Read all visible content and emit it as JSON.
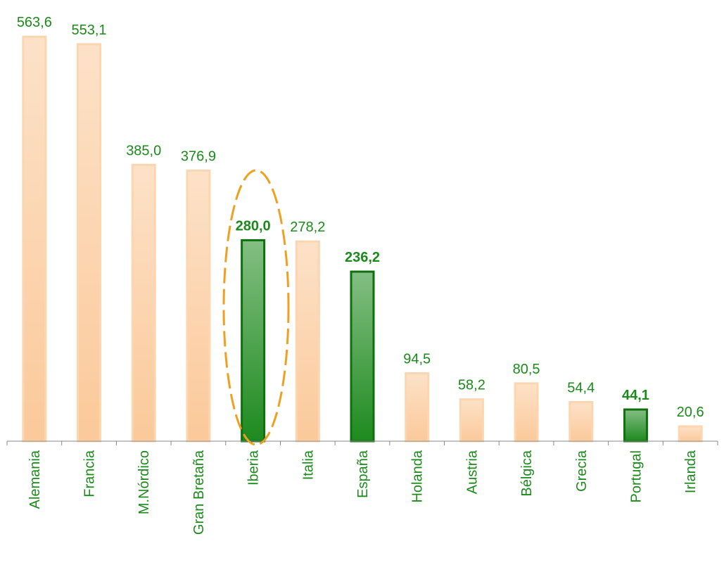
{
  "chart_data": {
    "type": "bar",
    "categories": [
      "Alemania",
      "Francia",
      "M.Nórdico",
      "Gran Bretaña",
      "Iberia",
      "Italia",
      "España",
      "Holanda",
      "Austria",
      "Bélgica",
      "Grecia",
      "Portugal",
      "Irlanda"
    ],
    "values": [
      563.6,
      553.1,
      385.0,
      376.9,
      280.0,
      278.2,
      236.2,
      94.5,
      58.2,
      80.5,
      54.4,
      44.1,
      20.6
    ],
    "value_labels": [
      "563,6",
      "553,1",
      "385,0",
      "376,9",
      "280,0",
      "278,2",
      "236,2",
      "94,5",
      "58,2",
      "80,5",
      "54,4",
      "44,1",
      "20,6"
    ],
    "colors": [
      "#fbc99a",
      "#fbc99a",
      "#fbc99a",
      "#fbc99a",
      "#1e8a1e",
      "#fbc99a",
      "#1e8a1e",
      "#fbc99a",
      "#fbc99a",
      "#fbc99a",
      "#fbc99a",
      "#1e8a1e",
      "#fbc99a"
    ],
    "highlight_color": "#1e8a1e",
    "ylim": [
      0,
      600
    ]
  }
}
